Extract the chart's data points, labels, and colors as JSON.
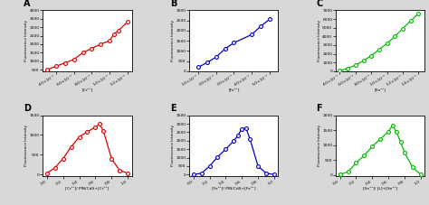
{
  "A": {
    "label": "A",
    "color": "#dd0000",
    "xlabel": "[Cr²⁺]",
    "ylabel": "Fluorescence Intensity",
    "x": [
      0.0003,
      0.0004,
      0.0005,
      0.0006,
      0.0007,
      0.0008,
      0.0009,
      0.001,
      0.00105,
      0.0011,
      0.0012
    ],
    "y": [
      500,
      700,
      900,
      1100,
      1500,
      1750,
      2000,
      2200,
      2600,
      2800,
      3300
    ],
    "xlim": [
      0.00025,
      0.00125
    ],
    "ylim": [
      400,
      4000
    ],
    "xticks": [
      0.0004,
      0.0006,
      0.0008,
      0.001,
      0.0012
    ],
    "xtick_labels": [
      "4.0×10⁻⁴",
      "6.0×10⁻⁴",
      "8.0×10⁻⁴",
      "1.0×10⁻³",
      "1.2×10⁻³"
    ],
    "yticks": [
      500,
      1000,
      1500,
      2000,
      2500,
      3000,
      3500,
      4000
    ],
    "sci_x": true
  },
  "B": {
    "label": "B",
    "color": "#0000cc",
    "xlabel": "[Fe³⁺]",
    "ylabel": "Fluorescence Intensity",
    "x": [
      0.0001,
      0.00015,
      0.0002,
      0.00025,
      0.0003,
      0.0004,
      0.00045,
      0.0005
    ],
    "y": [
      200,
      430,
      700,
      1100,
      1400,
      1800,
      2200,
      2550
    ],
    "xlim": [
      5e-05,
      0.00055
    ],
    "ylim": [
      0,
      3000
    ],
    "xticks": [
      0.0001,
      0.0002,
      0.0003,
      0.0004,
      0.0005
    ],
    "xtick_labels": [
      "1.0×10⁻⁴",
      "2.0×10⁻⁴",
      "3.0×10⁻⁴",
      "4.0×10⁻⁴",
      "5.0×10⁻⁴"
    ],
    "yticks": [
      0,
      500,
      1000,
      1500,
      2000,
      2500,
      3000
    ],
    "sci_x": true
  },
  "C": {
    "label": "C",
    "color": "#00bb00",
    "xlabel": "[Sn²⁺]",
    "ylabel": "Fluorescence Intensity",
    "x": [
      0.0004,
      0.0005,
      0.0006,
      0.0007,
      0.0008,
      0.0009,
      0.001,
      0.0011,
      0.0012,
      0.0013,
      0.0014
    ],
    "y": [
      50,
      350,
      700,
      1200,
      1800,
      2500,
      3200,
      4000,
      4900,
      5800,
      6600
    ],
    "xlim": [
      0.00035,
      0.00148
    ],
    "ylim": [
      0,
      7000
    ],
    "xticks": [
      0.0004,
      0.0006,
      0.0008,
      0.001,
      0.0012,
      0.0014
    ],
    "xtick_labels": [
      "4.0×10⁻⁴",
      "6.0×10⁻⁴",
      "8.0×10⁻⁴",
      "1.0×10⁻³",
      "1.2×10⁻³",
      "1.4×10⁻³"
    ],
    "yticks": [
      0,
      1000,
      2000,
      3000,
      4000,
      5000,
      6000,
      7000
    ],
    "sci_x": true
  },
  "D": {
    "label": "D",
    "color": "#dd0000",
    "xlabel": "[Cr³⁺]/ PIN/CdS+[Cr³⁺]",
    "ylabel": "Fluorescence Intensity",
    "x": [
      0.0,
      0.1,
      0.2,
      0.3,
      0.4,
      0.5,
      0.6,
      0.65,
      0.7,
      0.8,
      0.9,
      1.0
    ],
    "y": [
      30,
      170,
      400,
      700,
      950,
      1080,
      1200,
      1280,
      1100,
      400,
      100,
      30
    ],
    "xlim": [
      -0.05,
      1.05
    ],
    "ylim": [
      -50,
      1500
    ],
    "xticks": [
      0.0,
      0.2,
      0.4,
      0.6,
      0.8,
      1.0
    ],
    "xtick_labels": [
      "0.0",
      "0.2",
      "0.4",
      "0.6",
      "0.8",
      "1.0"
    ],
    "yticks": [
      0,
      500,
      1000,
      1500
    ],
    "sci_x": false
  },
  "E": {
    "label": "E",
    "color": "#0000cc",
    "xlabel": "[Fe³⁺]/ PIN/CdS+[Fe³⁺]",
    "ylabel": "Fluorescence Intensity",
    "x": [
      0.0,
      0.1,
      0.2,
      0.3,
      0.4,
      0.5,
      0.55,
      0.6,
      0.65,
      0.7,
      0.8,
      0.9,
      1.0
    ],
    "y": [
      10,
      80,
      500,
      1050,
      1500,
      2000,
      2300,
      2700,
      2750,
      2100,
      500,
      80,
      10
    ],
    "xlim": [
      -0.05,
      1.05
    ],
    "ylim": [
      -100,
      3500
    ],
    "xticks": [
      0.0,
      0.2,
      0.4,
      0.6,
      0.8,
      1.0
    ],
    "xtick_labels": [
      "0.0",
      "0.2",
      "0.4",
      "0.6",
      "0.8",
      "1.0"
    ],
    "yticks": [
      0,
      500,
      1000,
      1500,
      2000,
      2500,
      3000,
      3500
    ],
    "sci_x": false
  },
  "F": {
    "label": "F",
    "color": "#00bb00",
    "xlabel": "[Sn²⁺]/ [L]+[Sn²⁺]",
    "ylabel": "Fluorescence Intensity",
    "x": [
      0.0,
      0.1,
      0.2,
      0.3,
      0.4,
      0.5,
      0.6,
      0.65,
      0.7,
      0.75,
      0.8,
      0.9,
      1.0
    ],
    "y": [
      10,
      100,
      400,
      650,
      950,
      1200,
      1450,
      1650,
      1450,
      1100,
      750,
      250,
      10
    ],
    "xlim": [
      -0.05,
      1.05
    ],
    "ylim": [
      -50,
      2000
    ],
    "xticks": [
      0.0,
      0.2,
      0.4,
      0.6,
      0.8,
      1.0
    ],
    "xtick_labels": [
      "0.0",
      "0.2",
      "0.4",
      "0.6",
      "0.8",
      "1.0"
    ],
    "yticks": [
      0,
      500,
      1000,
      1500,
      2000
    ],
    "sci_x": false
  },
  "bg_color": "#d8d8d8",
  "panel_bg": "#ffffff"
}
